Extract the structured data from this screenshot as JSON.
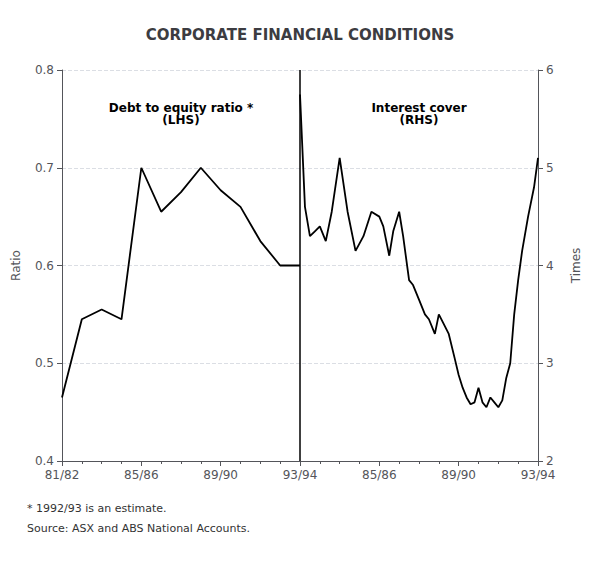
{
  "chart_data": {
    "type": "line",
    "title": "CORPORATE FINANCIAL CONDITIONS",
    "ylabel": "Ratio",
    "y2label": "Times",
    "xlim": [
      0,
      24
    ],
    "xticks": [
      {
        "value": 0,
        "label": "81/82"
      },
      {
        "value": 4,
        "label": "85/86"
      },
      {
        "value": 8,
        "label": "89/90"
      },
      {
        "value": 12,
        "label": "93/94"
      },
      {
        "value": 16,
        "label": "85/86"
      },
      {
        "value": 20,
        "label": "89/90"
      },
      {
        "value": 24,
        "label": "93/94"
      }
    ],
    "ylim": [
      0.4,
      0.8
    ],
    "yticks": [
      0.4,
      0.5,
      0.6,
      0.7,
      0.8
    ],
    "y2lim": [
      2.0,
      6.0
    ],
    "y2ticks": [
      2,
      3,
      4,
      5,
      6
    ],
    "grid": true,
    "annotations": [
      "Debt to equity ratio *\n(LHS)",
      "Interest cover\n(RHS)"
    ],
    "footnotes": [
      "* 1992/93 is an estimate.",
      "Source: ASX and ABS National Accounts."
    ],
    "series": [
      {
        "color": "#000000",
        "x": [
          0,
          1,
          2,
          3,
          4,
          5,
          6,
          7,
          8,
          9,
          10,
          11,
          12
        ],
        "values": [
          0.465,
          0.545,
          0.555,
          0.545,
          0.7,
          0.655,
          0.675,
          0.7,
          0.677,
          0.66,
          0.625,
          0.6,
          0.6
        ]
      },
      {
        "color": "#000000",
        "axis": "y2",
        "x": [
          12,
          12.25,
          12.5,
          12.75,
          13,
          13.3,
          13.6,
          14,
          14.4,
          14.8,
          15.2,
          15.6,
          16,
          16.2,
          16.5,
          16.7,
          17,
          17.2,
          17.5,
          17.7,
          18,
          18.3,
          18.5,
          18.8,
          19,
          19.2,
          19.5,
          19.8,
          20,
          20.2,
          20.4,
          20.6,
          20.8,
          21,
          21.2,
          21.4,
          21.6,
          21.8,
          22,
          22.2,
          22.4,
          22.6,
          22.8,
          23,
          23.2,
          23.5,
          23.8,
          24
        ],
        "values": [
          5.75,
          4.6,
          4.3,
          4.35,
          4.4,
          4.25,
          4.55,
          5.1,
          4.55,
          4.15,
          4.3,
          4.55,
          4.5,
          4.4,
          4.1,
          4.35,
          4.55,
          4.3,
          3.85,
          3.8,
          3.65,
          3.5,
          3.45,
          3.3,
          3.5,
          3.42,
          3.3,
          3.05,
          2.88,
          2.75,
          2.65,
          2.58,
          2.6,
          2.75,
          2.6,
          2.55,
          2.65,
          2.6,
          2.55,
          2.62,
          2.85,
          3.0,
          3.5,
          3.85,
          4.15,
          4.5,
          4.8,
          5.1
        ]
      }
    ]
  }
}
